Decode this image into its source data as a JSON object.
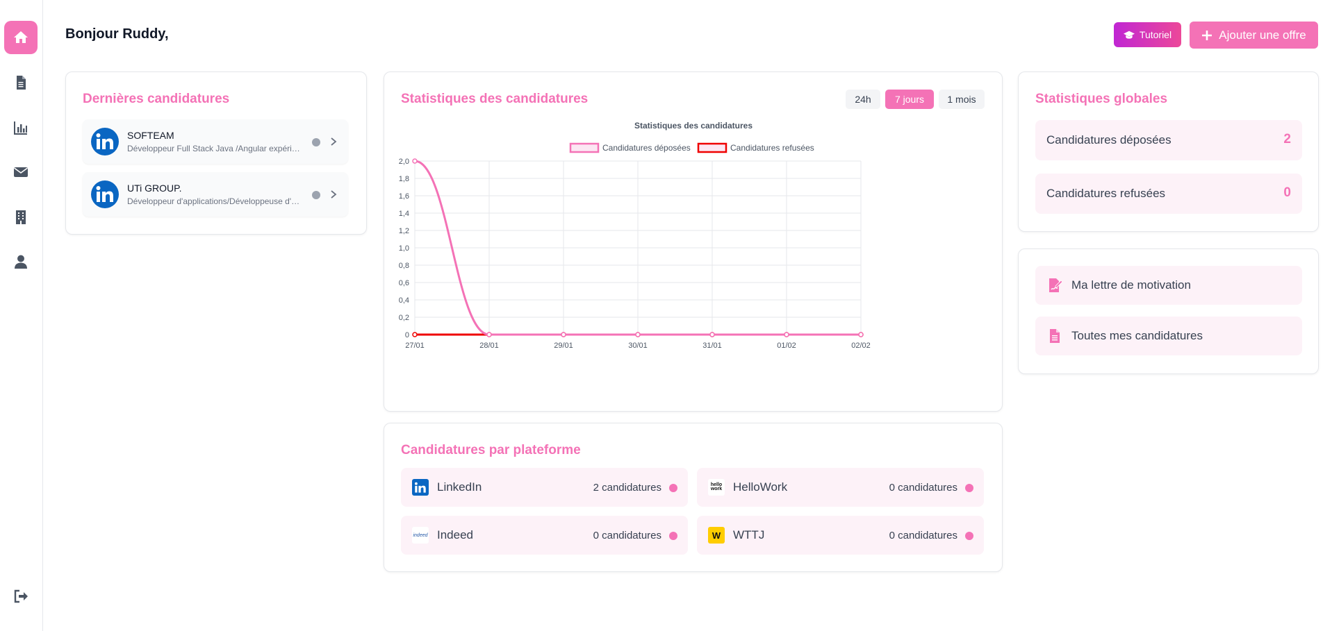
{
  "header": {
    "greeting": "Bonjour Ruddy,",
    "tutorial_label": "Tutoriel",
    "add_offer_label": "Ajouter une offre"
  },
  "sidebar": {
    "items": [
      {
        "icon": "home-icon",
        "active": true
      },
      {
        "icon": "document-icon",
        "active": false
      },
      {
        "icon": "chart-icon",
        "active": false
      },
      {
        "icon": "mail-icon",
        "active": false
      },
      {
        "icon": "building-icon",
        "active": false
      },
      {
        "icon": "user-icon",
        "active": false
      }
    ],
    "logout_icon": "logout-icon"
  },
  "recent": {
    "title": "Dernières candidatures",
    "items": [
      {
        "company": "SOFTEAM",
        "role": "Développeur Full Stack Java /Angular expérimenté",
        "platform": "LinkedIn"
      },
      {
        "company": "UTi GROUP.",
        "role": "Développeur d'applications/Développeuse d'applications",
        "platform": "LinkedIn"
      }
    ]
  },
  "stats": {
    "title": "Statistiques des candidatures",
    "ranges": [
      "24h",
      "7 jours",
      "1 mois"
    ],
    "active_range": "7 jours"
  },
  "chart_data": {
    "type": "line",
    "title": "Statistiques des candidatures",
    "categories": [
      "27/01",
      "28/01",
      "29/01",
      "30/01",
      "31/01",
      "01/02",
      "02/02"
    ],
    "series": [
      {
        "name": "Candidatures déposées",
        "values": [
          2,
          0,
          0,
          0,
          0,
          0,
          0
        ],
        "color": "#f472b6"
      },
      {
        "name": "Candidatures refusées",
        "values": [
          0,
          0,
          0,
          0,
          0,
          0,
          0
        ],
        "color": "#ef0000"
      }
    ],
    "ylim": [
      0,
      2
    ],
    "yticks": [
      "2,0",
      "1,8",
      "1,6",
      "1,4",
      "1,2",
      "1,0",
      "0,8",
      "0,6",
      "0,4",
      "0,2",
      "0"
    ],
    "legend": "top",
    "grid": true
  },
  "global": {
    "title": "Statistiques globales",
    "rows": [
      {
        "label": "Candidatures déposées",
        "value": "2"
      },
      {
        "label": "Candidatures refusées",
        "value": "0"
      }
    ]
  },
  "links": [
    {
      "label": "Ma lettre de motivation",
      "icon": "signature-icon"
    },
    {
      "label": "Toutes mes candidatures",
      "icon": "file-icon"
    }
  ],
  "platforms": {
    "title": "Candidatures par plateforme",
    "items": [
      {
        "name": "LinkedIn",
        "count": "2 candidatures",
        "logo_text": "in",
        "color": "#0a66c2"
      },
      {
        "name": "HelloWork",
        "count": "0 candidatures",
        "logo_text": "hello work",
        "color": "#ffffff"
      },
      {
        "name": "Indeed",
        "count": "0 candidatures",
        "logo_text": "indeed",
        "color": "#ffffff"
      },
      {
        "name": "WTTJ",
        "count": "0 candidatures",
        "logo_text": "W",
        "color": "#ffcd00"
      }
    ]
  },
  "colors": {
    "accent": "#f472b6",
    "refused": "#ef0000"
  }
}
